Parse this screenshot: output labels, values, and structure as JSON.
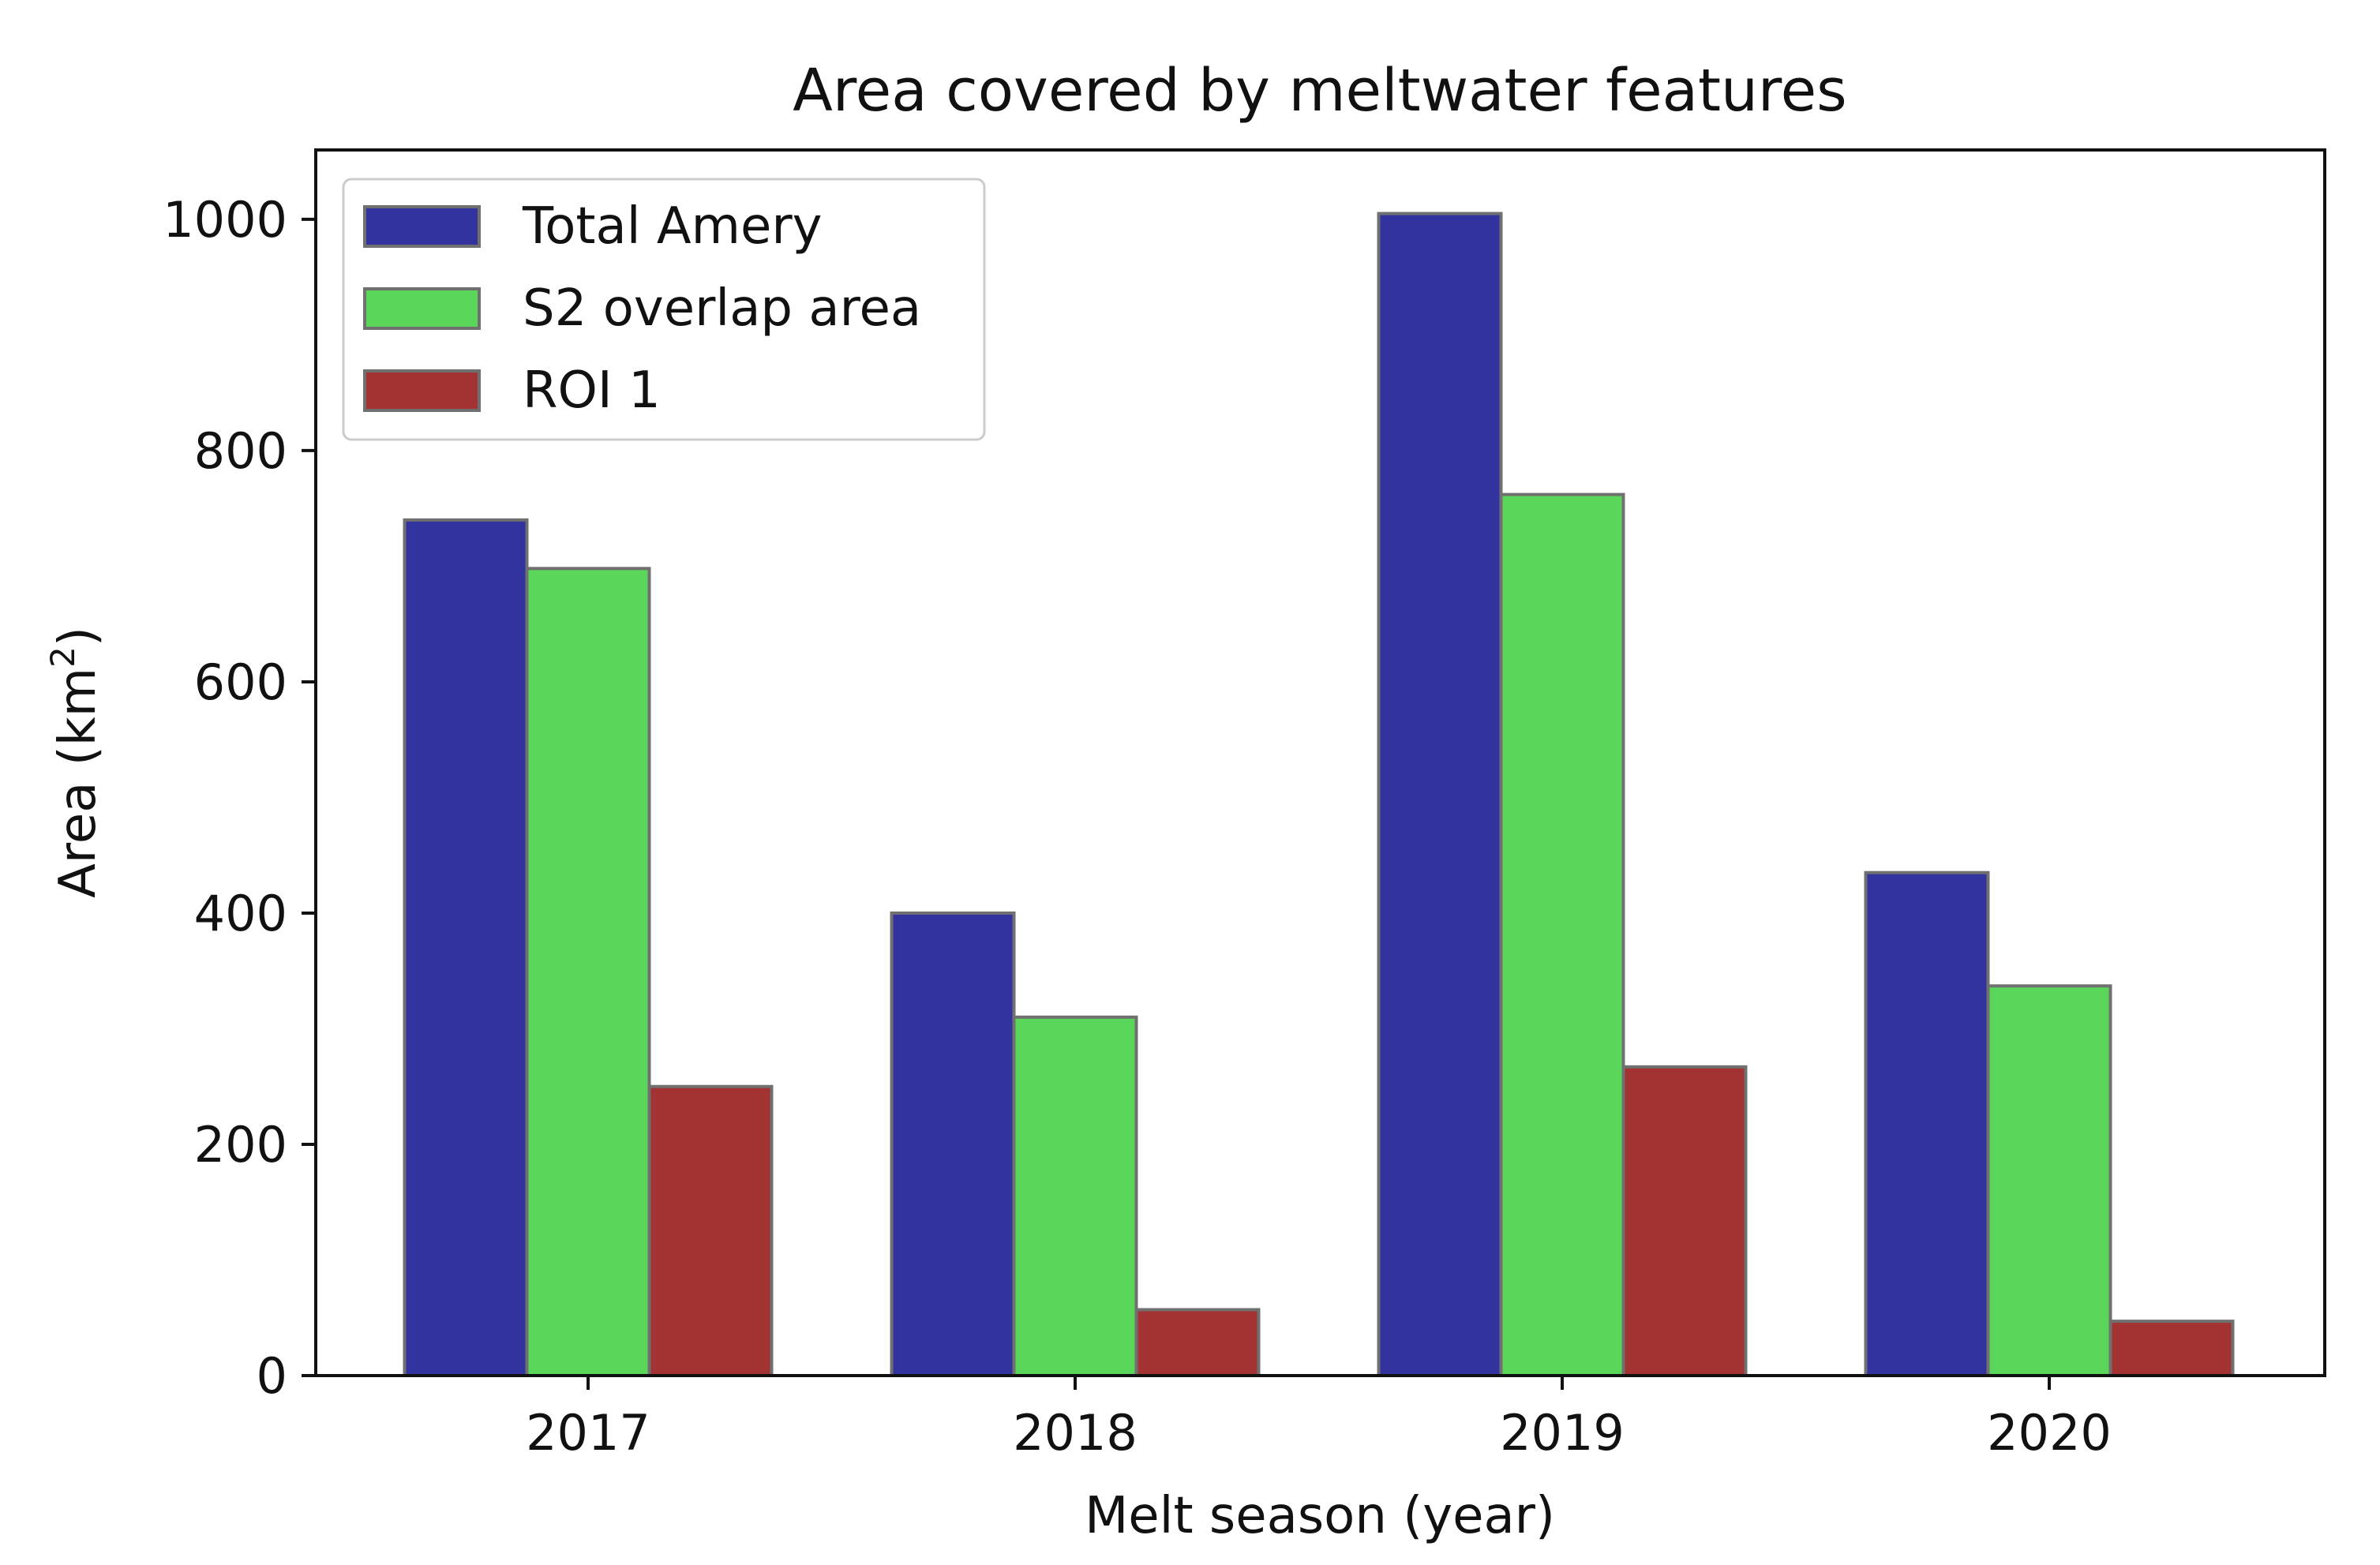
{
  "chart_data": {
    "type": "bar",
    "title": "Area covered by meltwater features",
    "xlabel": "Melt season (year)",
    "ylabel_main": "Area (km",
    "ylabel_sup": "2",
    "ylabel_close": ")",
    "categories": [
      "2017",
      "2018",
      "2019",
      "2020"
    ],
    "series": [
      {
        "name": "Total Amery",
        "values": [
          740,
          400,
          1005,
          435
        ],
        "color": "#3333a0"
      },
      {
        "name": "S2 overlap area",
        "values": [
          698,
          310,
          762,
          337
        ],
        "color": "#5ad75a"
      },
      {
        "name": "ROI 1",
        "values": [
          250,
          57,
          267,
          47
        ],
        "color": "#a33333"
      }
    ],
    "ylim": [
      0,
      1060
    ],
    "yticks": [
      0,
      200,
      400,
      600,
      800,
      1000
    ],
    "bar_edge_color": "#707070",
    "legend_position": "top-left"
  }
}
